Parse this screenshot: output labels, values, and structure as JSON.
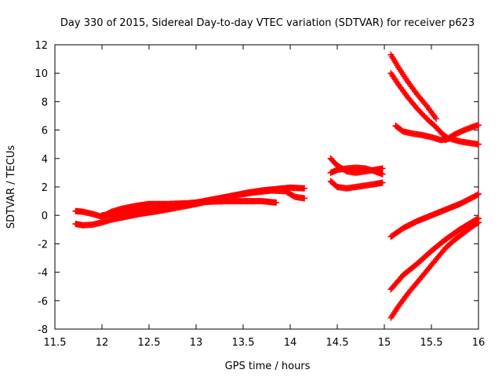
{
  "chart_data": {
    "type": "scatter",
    "title": "Day 330 of 2015, Sidereal Day-to-day VTEC variation (SDTVAR) for receiver p623",
    "xlabel": "GPS time / hours",
    "ylabel": "SDTVAR / TECUs",
    "xlim": [
      11.5,
      16
    ],
    "ylim": [
      -8,
      12
    ],
    "x_ticks": [
      11.5,
      12,
      12.5,
      13,
      13.5,
      14,
      14.5,
      15,
      15.5,
      16
    ],
    "x_tick_labels": [
      "11.5",
      "12",
      "12.5",
      "13",
      "13.5",
      "14",
      "14.5",
      "15",
      "15.5",
      "16"
    ],
    "y_ticks": [
      -8,
      -6,
      -4,
      -2,
      0,
      2,
      4,
      6,
      8,
      10,
      12
    ],
    "y_tick_labels": [
      "-8",
      "-6",
      "-4",
      "-2",
      "0",
      "2",
      "4",
      "6",
      "8",
      "10",
      "12"
    ],
    "grid": false,
    "legend": "none",
    "marker": "+",
    "color": "#ff0000",
    "series": [
      {
        "x": [
          11.72,
          11.8,
          11.9,
          12.0,
          12.1,
          12.2,
          12.35,
          12.5,
          12.7,
          12.9,
          13.1,
          13.3,
          13.5,
          13.7,
          13.85
        ],
        "y": [
          0.3,
          0.25,
          0.1,
          -0.1,
          0.25,
          0.45,
          0.65,
          0.8,
          0.8,
          0.85,
          0.95,
          1.0,
          1.0,
          1.0,
          0.9
        ]
      },
      {
        "x": [
          11.72,
          11.8,
          11.9,
          12.0,
          12.1,
          12.25,
          12.4,
          12.6,
          12.8,
          13.0,
          13.2,
          13.4,
          13.55,
          13.7,
          13.85,
          14.0,
          14.15
        ],
        "y": [
          -0.6,
          -0.7,
          -0.65,
          -0.5,
          -0.3,
          -0.1,
          0.1,
          0.3,
          0.55,
          0.8,
          1.1,
          1.4,
          1.6,
          1.75,
          1.85,
          1.95,
          1.9
        ]
      },
      {
        "x": [
          12.0,
          12.2,
          12.4,
          12.6,
          12.8,
          13.0,
          13.2,
          13.4,
          13.6,
          13.8,
          13.95,
          14.05,
          14.15
        ],
        "y": [
          0.0,
          0.15,
          0.35,
          0.5,
          0.7,
          0.9,
          1.15,
          1.4,
          1.6,
          1.75,
          1.7,
          1.3,
          1.2
        ]
      },
      {
        "x": [
          14.43,
          14.5,
          14.6,
          14.7,
          14.8,
          14.9,
          14.98
        ],
        "y": [
          4.0,
          3.5,
          3.1,
          3.0,
          3.1,
          3.2,
          3.3
        ]
      },
      {
        "x": [
          14.43,
          14.5,
          14.6,
          14.7,
          14.8,
          14.9,
          14.98
        ],
        "y": [
          3.0,
          3.2,
          3.3,
          3.35,
          3.3,
          3.1,
          2.9
        ]
      },
      {
        "x": [
          14.43,
          14.5,
          14.6,
          14.7,
          14.8,
          14.9,
          14.98
        ],
        "y": [
          2.4,
          2.0,
          1.9,
          2.0,
          2.1,
          2.2,
          2.3
        ]
      },
      {
        "x": [
          15.07,
          15.15,
          15.25,
          15.35,
          15.45,
          15.55
        ],
        "y": [
          11.3,
          10.4,
          9.4,
          8.5,
          7.7,
          6.8
        ]
      },
      {
        "x": [
          15.07,
          15.15,
          15.25,
          15.35,
          15.45,
          15.55,
          15.62,
          15.68
        ],
        "y": [
          10.0,
          9.2,
          8.3,
          7.5,
          6.8,
          6.2,
          5.7,
          5.4
        ]
      },
      {
        "x": [
          15.12,
          15.2,
          15.3,
          15.4,
          15.5,
          15.6,
          15.7,
          15.8,
          15.9,
          16.0
        ],
        "y": [
          6.3,
          5.9,
          5.75,
          5.65,
          5.5,
          5.3,
          5.4,
          5.2,
          5.1,
          5.0
        ]
      },
      {
        "x": [
          15.65,
          15.75,
          15.85,
          15.95,
          16.0
        ],
        "y": [
          5.3,
          5.7,
          6.0,
          6.25,
          6.35
        ]
      },
      {
        "x": [
          15.07,
          15.2,
          15.35,
          15.5,
          15.65,
          15.8,
          15.95,
          16.0
        ],
        "y": [
          -1.5,
          -0.9,
          -0.4,
          0.0,
          0.4,
          0.8,
          1.3,
          1.5
        ]
      },
      {
        "x": [
          15.07,
          15.2,
          15.35,
          15.5,
          15.65,
          15.8,
          15.95,
          16.0
        ],
        "y": [
          -5.2,
          -4.2,
          -3.4,
          -2.5,
          -1.7,
          -1.0,
          -0.4,
          -0.2
        ]
      },
      {
        "x": [
          15.07,
          15.15,
          15.25,
          15.35,
          15.45,
          15.55,
          15.65,
          15.75,
          15.85,
          15.95,
          16.0
        ],
        "y": [
          -7.2,
          -6.4,
          -5.5,
          -4.7,
          -3.9,
          -3.1,
          -2.3,
          -1.7,
          -1.2,
          -0.7,
          -0.5
        ]
      }
    ]
  }
}
